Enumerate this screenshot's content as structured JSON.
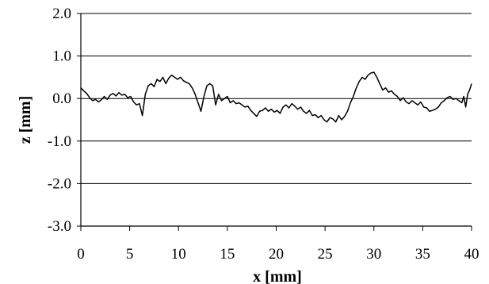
{
  "chart_data": {
    "type": "line",
    "xlabel": "x [mm]",
    "ylabel": "z [mm]",
    "xlim": [
      0,
      40
    ],
    "ylim": [
      -3.0,
      2.0
    ],
    "x_ticks": [
      "0",
      "5",
      "10",
      "15",
      "20",
      "25",
      "30",
      "35",
      "40"
    ],
    "y_ticks": [
      "2.0",
      "1.0",
      "0.0",
      "-1.0",
      "-2.0",
      "-3.0"
    ],
    "grid": "horizontal",
    "legend": "none",
    "line_color": "#000000",
    "series": [
      {
        "x": [
          0.0,
          0.3,
          0.6,
          0.9,
          1.2,
          1.5,
          1.8,
          2.1,
          2.4,
          2.7,
          3.0,
          3.3,
          3.6,
          3.9,
          4.2,
          4.5,
          4.8,
          5.1,
          5.4,
          5.7,
          6.0,
          6.3,
          6.6,
          6.9,
          7.2,
          7.5,
          7.8,
          8.1,
          8.4,
          8.7,
          9.0,
          9.3,
          9.6,
          9.9,
          10.2,
          10.5,
          10.8,
          11.1,
          11.4,
          11.7,
          12.0,
          12.3,
          12.6,
          12.9,
          13.2,
          13.5,
          13.8,
          14.1,
          14.4,
          14.7,
          15.0,
          15.3,
          15.6,
          15.9,
          16.2,
          16.5,
          16.8,
          17.1,
          17.4,
          17.7,
          18.0,
          18.3,
          18.6,
          18.9,
          19.2,
          19.5,
          19.8,
          20.1,
          20.4,
          20.7,
          21.0,
          21.3,
          21.6,
          21.9,
          22.2,
          22.5,
          22.8,
          23.1,
          23.4,
          23.7,
          24.0,
          24.3,
          24.6,
          24.9,
          25.2,
          25.5,
          25.8,
          26.1,
          26.4,
          26.7,
          27.0,
          27.3,
          27.6,
          27.9,
          28.2,
          28.5,
          28.8,
          29.1,
          29.4,
          29.7,
          30.0,
          30.3,
          30.6,
          30.9,
          31.2,
          31.5,
          31.8,
          32.1,
          32.4,
          32.7,
          33.0,
          33.3,
          33.6,
          33.9,
          34.2,
          34.5,
          34.8,
          35.1,
          35.4,
          35.7,
          36.0,
          36.3,
          36.6,
          36.9,
          37.2,
          37.5,
          37.8,
          38.1,
          38.4,
          38.7,
          39.0,
          39.2,
          39.4,
          39.6,
          39.8,
          40.0
        ],
        "y": [
          0.25,
          0.18,
          0.12,
          0.02,
          -0.05,
          -0.02,
          -0.08,
          -0.03,
          0.05,
          -0.02,
          0.08,
          0.12,
          0.06,
          0.14,
          0.08,
          0.1,
          0.02,
          0.05,
          -0.08,
          -0.15,
          -0.12,
          -0.4,
          0.1,
          0.3,
          0.35,
          0.28,
          0.45,
          0.4,
          0.5,
          0.35,
          0.48,
          0.55,
          0.5,
          0.45,
          0.5,
          0.42,
          0.38,
          0.35,
          0.25,
          0.1,
          -0.1,
          -0.3,
          0.05,
          0.3,
          0.35,
          0.3,
          -0.15,
          0.1,
          -0.05,
          0.0,
          0.05,
          -0.1,
          -0.05,
          -0.12,
          -0.1,
          -0.15,
          -0.2,
          -0.18,
          -0.28,
          -0.35,
          -0.42,
          -0.3,
          -0.28,
          -0.22,
          -0.3,
          -0.25,
          -0.32,
          -0.28,
          -0.35,
          -0.2,
          -0.15,
          -0.22,
          -0.12,
          -0.18,
          -0.25,
          -0.2,
          -0.3,
          -0.35,
          -0.28,
          -0.4,
          -0.38,
          -0.45,
          -0.4,
          -0.5,
          -0.55,
          -0.45,
          -0.48,
          -0.55,
          -0.4,
          -0.5,
          -0.42,
          -0.3,
          -0.1,
          0.05,
          0.25,
          0.4,
          0.5,
          0.45,
          0.55,
          0.6,
          0.62,
          0.5,
          0.35,
          0.2,
          0.25,
          0.15,
          0.18,
          0.1,
          0.05,
          -0.05,
          0.02,
          -0.08,
          -0.12,
          -0.05,
          -0.1,
          -0.15,
          -0.08,
          -0.2,
          -0.22,
          -0.3,
          -0.28,
          -0.25,
          -0.2,
          -0.1,
          -0.05,
          0.02,
          0.05,
          -0.02,
          0.0,
          -0.05,
          -0.1,
          0.05,
          -0.2,
          0.1,
          0.2,
          0.35
        ]
      }
    ]
  }
}
